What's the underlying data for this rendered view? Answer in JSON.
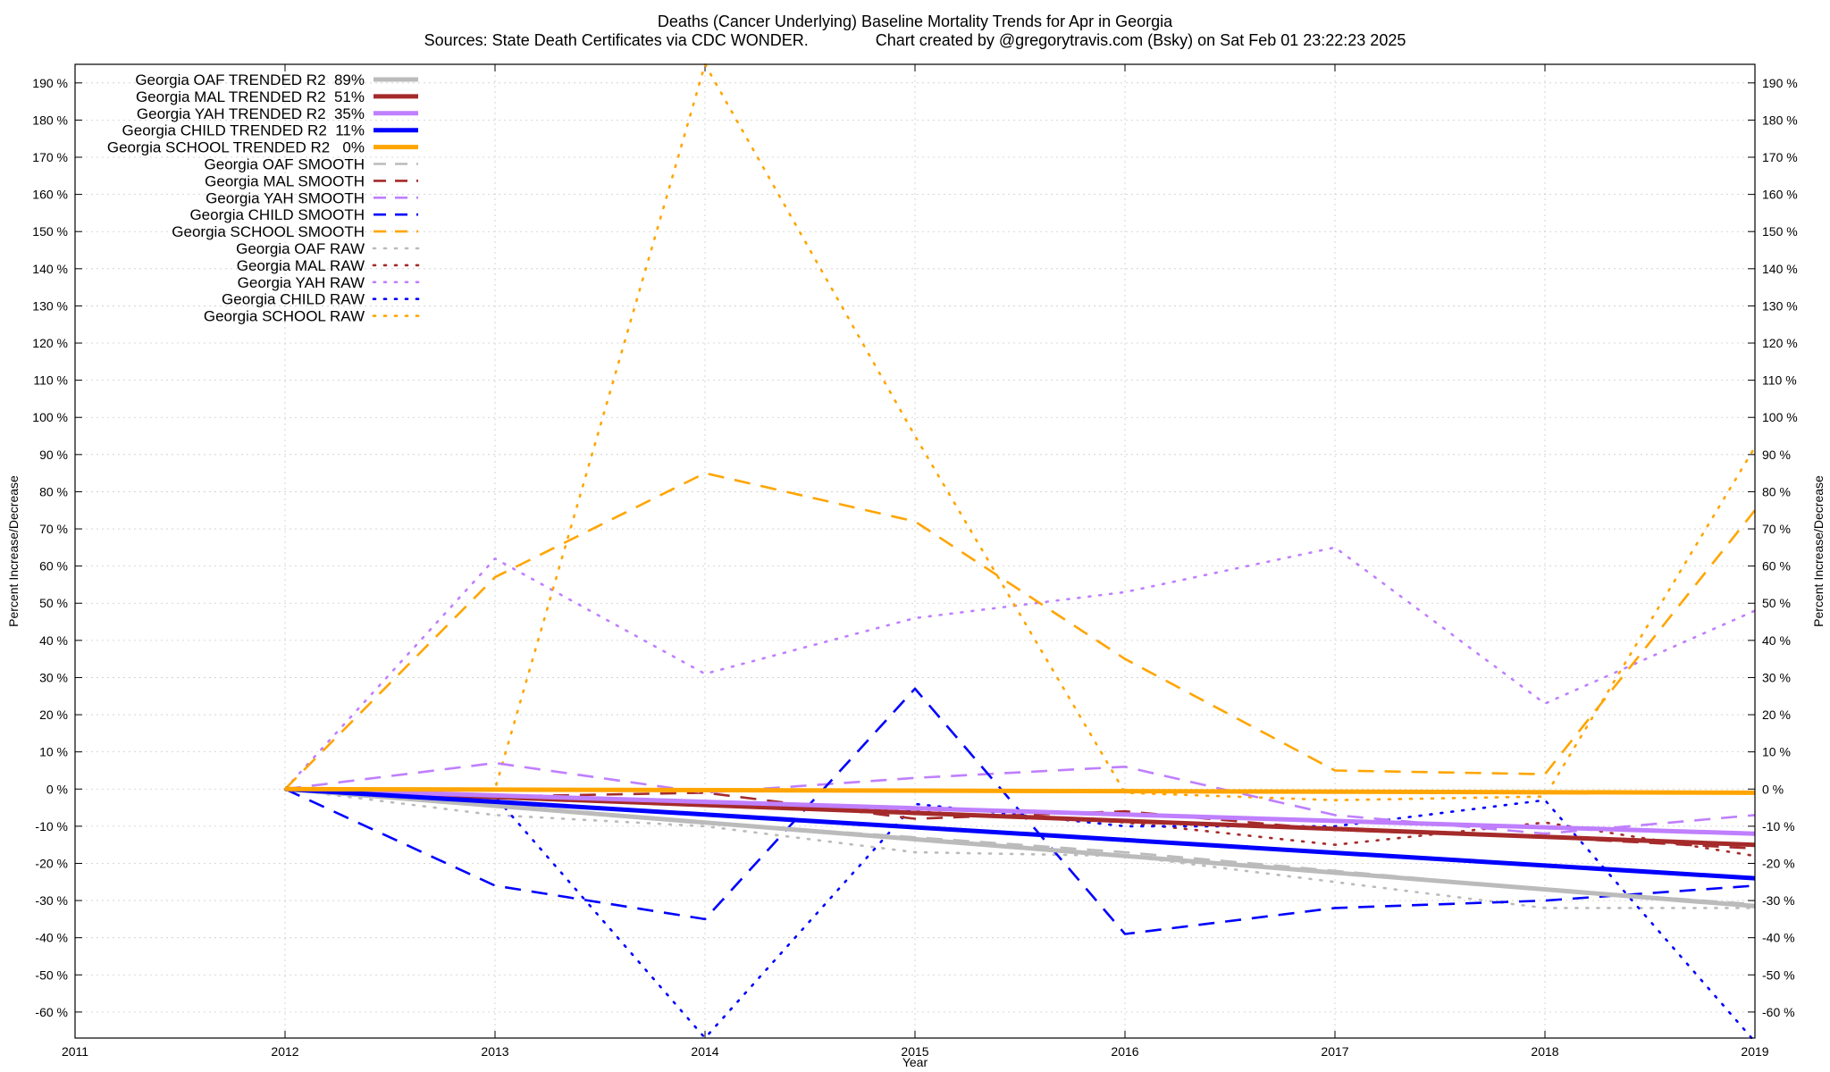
{
  "chart_data": {
    "type": "line",
    "title": "Deaths (Cancer Underlying)  Baseline Mortality Trends for Apr in Georgia",
    "subtitle": "Sources: State Death Certificates via CDC WONDER.               Chart created by @gregorytravis.com (Bsky) on Sat Feb 01 23:22:23 2025",
    "xlabel": "Year",
    "ylabel": "Percent Increase/Decrease",
    "xlim": [
      2011,
      2019
    ],
    "ylim": [
      -67,
      195
    ],
    "x_ticks": [
      "2011",
      "2012",
      "2013",
      "2014",
      "2015",
      "2016",
      "2017",
      "2018",
      "2019"
    ],
    "y_ticks": [
      "190 %",
      "180 %",
      "170 %",
      "160 %",
      "150 %",
      "140 %",
      "130 %",
      "120 %",
      "110 %",
      "100 %",
      "90 %",
      "80 %",
      "70 %",
      "60 %",
      "50 %",
      "40 %",
      "30 %",
      "20 %",
      "10 %",
      "0 %",
      "-10 %",
      "-20 %",
      "-30 %",
      "-40 %",
      "-50 %",
      "-60 %"
    ],
    "grid": true,
    "legend_position": "top-left",
    "colors": {
      "OAF": "#bbbbbb",
      "MAL": "#a52a2a",
      "YAH": "#bf7fff",
      "CHILD": "#0000ff",
      "SCHOOL": "#ffa500"
    },
    "series": [
      {
        "name": "Georgia OAF TRENDED R2  89%",
        "group": "OAF",
        "style": "trend",
        "x": [
          2012,
          2019
        ],
        "y": [
          0,
          -31.5
        ]
      },
      {
        "name": "Georgia MAL TRENDED R2  51%",
        "group": "MAL",
        "style": "trend",
        "x": [
          2012,
          2019
        ],
        "y": [
          0,
          -15
        ]
      },
      {
        "name": "Georgia YAH TRENDED R2  35%",
        "group": "YAH",
        "style": "trend",
        "x": [
          2012,
          2019
        ],
        "y": [
          0,
          -12
        ]
      },
      {
        "name": "Georgia CHILD TRENDED R2  11%",
        "group": "CHILD",
        "style": "trend",
        "x": [
          2012,
          2019
        ],
        "y": [
          0,
          -24
        ]
      },
      {
        "name": "Georgia SCHOOL TRENDED R2   0%",
        "group": "SCHOOL",
        "style": "trend",
        "x": [
          2012,
          2019
        ],
        "y": [
          0,
          -1
        ]
      },
      {
        "name": "Georgia OAF SMOOTH",
        "group": "OAF",
        "style": "smooth",
        "x": [
          2012,
          2013,
          2014,
          2015,
          2016,
          2017,
          2018,
          2019
        ],
        "y": [
          0,
          -4,
          -9,
          -13,
          -17,
          -22,
          -27,
          -31
        ]
      },
      {
        "name": "Georgia MAL SMOOTH",
        "group": "MAL",
        "style": "smooth",
        "x": [
          2012,
          2013,
          2014,
          2015,
          2016,
          2017,
          2018,
          2019
        ],
        "y": [
          0,
          -2,
          -1,
          -8,
          -6,
          -11,
          -13,
          -16
        ]
      },
      {
        "name": "Georgia YAH SMOOTH",
        "group": "YAH",
        "style": "smooth",
        "x": [
          2012,
          2013,
          2014,
          2015,
          2016,
          2017,
          2018,
          2019
        ],
        "y": [
          0,
          7,
          -1,
          3,
          6,
          -7,
          -12,
          -7
        ]
      },
      {
        "name": "Georgia CHILD SMOOTH",
        "group": "CHILD",
        "style": "smooth",
        "x": [
          2012,
          2013,
          2014,
          2015,
          2016,
          2017,
          2018,
          2019
        ],
        "y": [
          0,
          -26,
          -35,
          27,
          -39,
          -32,
          -30,
          -26
        ]
      },
      {
        "name": "Georgia SCHOOL SMOOTH",
        "group": "SCHOOL",
        "style": "smooth",
        "x": [
          2012,
          2013,
          2014,
          2015,
          2016,
          2017,
          2018,
          2019
        ],
        "y": [
          0,
          57,
          85,
          72,
          35,
          5,
          4,
          75
        ]
      },
      {
        "name": "Georgia OAF RAW",
        "group": "OAF",
        "style": "raw",
        "x": [
          2012,
          2013,
          2014,
          2015,
          2016,
          2017,
          2018,
          2019
        ],
        "y": [
          0,
          -7,
          -10,
          -17,
          -18,
          -25,
          -32,
          -32
        ]
      },
      {
        "name": "Georgia MAL RAW",
        "group": "MAL",
        "style": "raw",
        "x": [
          2012,
          2013,
          2014,
          2015,
          2016,
          2017,
          2018,
          2019
        ],
        "y": [
          0,
          -2,
          -4,
          -6,
          -9,
          -15,
          -9,
          -18
        ]
      },
      {
        "name": "Georgia YAH RAW",
        "group": "YAH",
        "style": "raw",
        "x": [
          2012,
          2013,
          2014,
          2015,
          2016,
          2017,
          2018,
          2019
        ],
        "y": [
          0,
          62,
          31,
          46,
          53,
          65,
          23,
          48
        ]
      },
      {
        "name": "Georgia CHILD RAW",
        "group": "CHILD",
        "style": "raw",
        "x": [
          2012,
          2013,
          2014,
          2015,
          2016,
          2017,
          2018,
          2019
        ],
        "y": [
          0,
          -2,
          -67,
          -4,
          -10,
          -10,
          -3,
          -68
        ]
      },
      {
        "name": "Georgia SCHOOL RAW",
        "group": "SCHOOL",
        "style": "raw",
        "x": [
          2012,
          2013,
          2014,
          2015,
          2016,
          2017,
          2018,
          2019
        ],
        "y": [
          0,
          0,
          195,
          95,
          -1,
          -3,
          -2,
          92
        ]
      }
    ]
  }
}
